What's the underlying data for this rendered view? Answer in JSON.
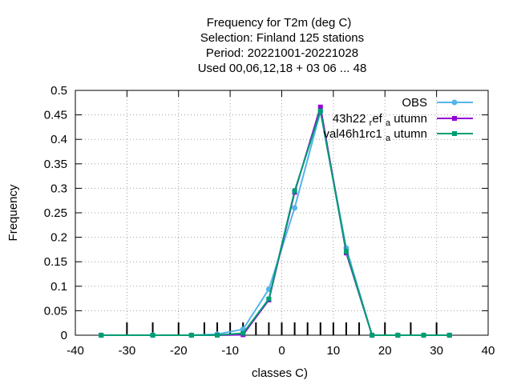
{
  "chart_data": {
    "type": "line",
    "title_lines": [
      "Frequency  for T2m (deg C)",
      "Selection: Finland    125 stations",
      "Period: 20221001-20221028",
      "Used  00,06,12,18  + 03 06 ... 48"
    ],
    "xlabel": "classes C)",
    "ylabel": "Frequency",
    "xlim": [
      -40,
      40
    ],
    "ylim": [
      0,
      0.5
    ],
    "xticks": [
      -40,
      -30,
      -20,
      -10,
      0,
      10,
      20,
      30,
      40
    ],
    "yticks": [
      0,
      0.05,
      0.1,
      0.15,
      0.2,
      0.25,
      0.3,
      0.35,
      0.4,
      0.45,
      0.5
    ],
    "grid": true,
    "legend_position": "top-right",
    "x": [
      -35,
      -25,
      -17.5,
      -12.5,
      -7.5,
      -2.5,
      2.5,
      7.5,
      12.5,
      17.5,
      22.5,
      27.5,
      32.5
    ],
    "bottom_tick_marks": [
      -30,
      -25,
      -20,
      -15,
      -12.5,
      -10,
      -7.5,
      -5,
      -2.5,
      0,
      2.5,
      5,
      7.5,
      10,
      12.5,
      15,
      20,
      25,
      30
    ],
    "series": [
      {
        "name": "OBS",
        "color": "#56b4e9",
        "marker": "circle",
        "values": [
          0,
          0,
          0,
          0.002,
          0.012,
          0.094,
          0.26,
          0.457,
          0.178,
          0,
          0,
          0,
          0
        ]
      },
      {
        "name": "43h22_ref_autumn",
        "legend_parts": [
          "43h22 ",
          "r",
          "ef ",
          "a",
          " utumn"
        ],
        "color": "#9400d3",
        "marker": "square",
        "values": [
          0,
          0,
          0,
          0,
          0.001,
          0.072,
          0.292,
          0.466,
          0.168,
          0,
          0,
          0,
          0
        ]
      },
      {
        "name": "val46h1rc1_autumn",
        "legend_parts": [
          "val46h1rc1 ",
          "a",
          " utumn"
        ],
        "color": "#009e73",
        "marker": "square",
        "values": [
          0,
          0,
          0,
          0,
          0.004,
          0.074,
          0.295,
          0.458,
          0.171,
          0,
          0,
          0,
          0
        ]
      }
    ]
  }
}
